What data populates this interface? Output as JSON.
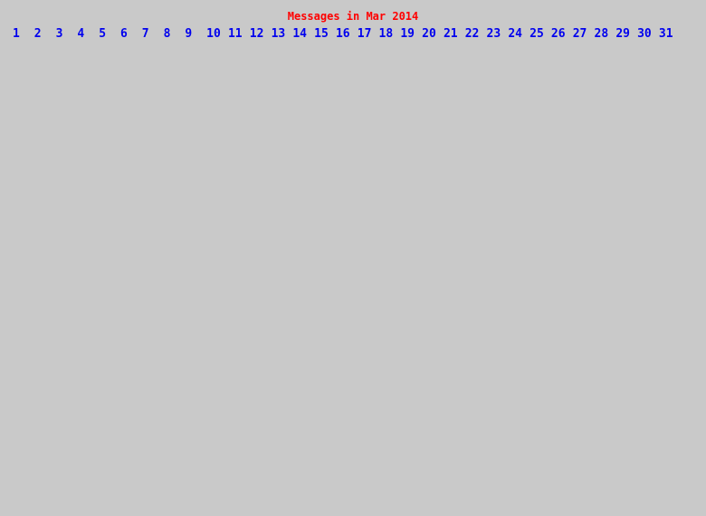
{
  "page": {
    "background_color": "#C9C9C9"
  },
  "title": {
    "text": "Messages in Mar 2014",
    "color": "#FF0000"
  },
  "day_nav": {
    "link_color": "#0000EE",
    "days": [
      "1",
      "2",
      "3",
      "4",
      "5",
      "6",
      "7",
      "8",
      "9",
      "10",
      "11",
      "12",
      "13",
      "14",
      "15",
      "16",
      "17",
      "18",
      "19",
      "20",
      "21",
      "22",
      "23",
      "24",
      "25",
      "26",
      "27",
      "28",
      "29",
      "30",
      "31"
    ]
  }
}
